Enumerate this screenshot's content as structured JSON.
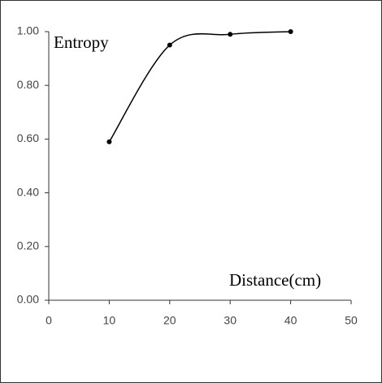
{
  "chart_data": {
    "type": "line",
    "ylabel": "Entropy",
    "xlabel": "Distance(cm)",
    "x": [
      10,
      20,
      30,
      40
    ],
    "series": [
      {
        "color": "#000000",
        "values": [
          0.59,
          0.95,
          0.99,
          1.0
        ]
      }
    ],
    "xlim": [
      0,
      50
    ],
    "xticks": [
      0,
      10,
      20,
      30,
      40,
      50
    ],
    "ylim": [
      0,
      1
    ],
    "yticks": [
      {
        "value": 0,
        "label": "0.00"
      },
      {
        "value": 0.2,
        "label": "0.20"
      },
      {
        "value": 0.4,
        "label": "0.40"
      },
      {
        "value": 0.6,
        "label": "0.60"
      },
      {
        "value": 0.8,
        "label": "0.80"
      },
      {
        "value": 1,
        "label": "1.00"
      }
    ],
    "grid": false
  }
}
